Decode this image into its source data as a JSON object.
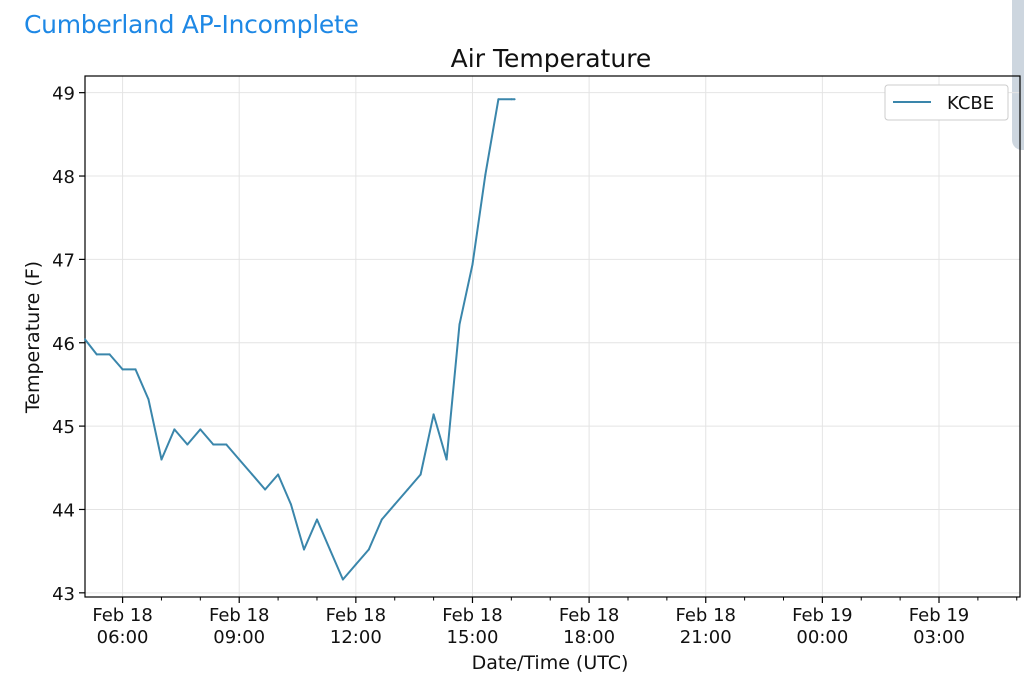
{
  "header": {
    "title": "Cumberland AP-Incomplete"
  },
  "colors": {
    "series": "#3a86ab",
    "title": "#1e88e5",
    "grid": "#e4e4e4"
  },
  "chart_data": {
    "type": "line",
    "title": "Air Temperature",
    "xlabel": "Date/Time (UTC)",
    "ylabel": "Temperature (F)",
    "ylim": [
      42.95,
      49.2
    ],
    "xlim": [
      "2023-02-18T05:02",
      "2023-02-19T05:05"
    ],
    "grid": true,
    "legend_position": "top-right",
    "x_ticks": [
      {
        "t": "2023-02-18T06:00",
        "label": [
          "Feb 18",
          "06:00"
        ]
      },
      {
        "t": "2023-02-18T09:00",
        "label": [
          "Feb 18",
          "09:00"
        ]
      },
      {
        "t": "2023-02-18T12:00",
        "label": [
          "Feb 18",
          "12:00"
        ]
      },
      {
        "t": "2023-02-18T15:00",
        "label": [
          "Feb 18",
          "15:00"
        ]
      },
      {
        "t": "2023-02-18T18:00",
        "label": [
          "Feb 18",
          "18:00"
        ]
      },
      {
        "t": "2023-02-18T21:00",
        "label": [
          "Feb 18",
          "21:00"
        ]
      },
      {
        "t": "2023-02-19T00:00",
        "label": [
          "Feb 19",
          "00:00"
        ]
      },
      {
        "t": "2023-02-19T03:00",
        "label": [
          "Feb 19",
          "03:00"
        ]
      }
    ],
    "y_ticks": [
      43,
      44,
      45,
      46,
      47,
      48,
      49
    ],
    "series": [
      {
        "name": "KCBE",
        "points": [
          [
            "2023-02-18T05:02",
            46.04
          ],
          [
            "2023-02-18T05:20",
            45.86
          ],
          [
            "2023-02-18T05:40",
            45.86
          ],
          [
            "2023-02-18T06:00",
            45.68
          ],
          [
            "2023-02-18T06:20",
            45.68
          ],
          [
            "2023-02-18T06:40",
            45.32
          ],
          [
            "2023-02-18T07:00",
            44.6
          ],
          [
            "2023-02-18T07:20",
            44.96
          ],
          [
            "2023-02-18T07:40",
            44.78
          ],
          [
            "2023-02-18T08:00",
            44.96
          ],
          [
            "2023-02-18T08:20",
            44.78
          ],
          [
            "2023-02-18T08:40",
            44.78
          ],
          [
            "2023-02-18T09:00",
            44.6
          ],
          [
            "2023-02-18T09:20",
            44.42
          ],
          [
            "2023-02-18T09:40",
            44.24
          ],
          [
            "2023-02-18T10:00",
            44.42
          ],
          [
            "2023-02-18T10:20",
            44.06
          ],
          [
            "2023-02-18T10:40",
            43.52
          ],
          [
            "2023-02-18T11:00",
            43.88
          ],
          [
            "2023-02-18T11:20",
            43.52
          ],
          [
            "2023-02-18T11:40",
            43.16
          ],
          [
            "2023-02-18T12:00",
            43.34
          ],
          [
            "2023-02-18T12:20",
            43.52
          ],
          [
            "2023-02-18T12:40",
            43.88
          ],
          [
            "2023-02-18T13:00",
            44.06
          ],
          [
            "2023-02-18T13:20",
            44.24
          ],
          [
            "2023-02-18T13:40",
            44.42
          ],
          [
            "2023-02-18T14:00",
            45.14
          ],
          [
            "2023-02-18T14:20",
            44.6
          ],
          [
            "2023-02-18T14:40",
            46.22
          ],
          [
            "2023-02-18T15:00",
            46.94
          ],
          [
            "2023-02-18T15:20",
            48.02
          ],
          [
            "2023-02-18T15:40",
            48.92
          ],
          [
            "2023-02-18T16:00",
            48.92
          ],
          [
            "2023-02-18T16:05",
            48.92
          ]
        ]
      }
    ]
  }
}
